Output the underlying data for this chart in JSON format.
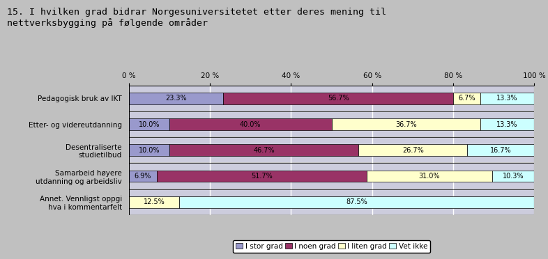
{
  "title": "15. I hvilken grad bidrar Norgesuniversitetet etter deres mening til\nnettverksbygging på følgende områder",
  "categories": [
    "Pedagogisk bruk av IKT",
    "Etter- og videreutdanning",
    "Desentraliserte\nstudietilbud",
    "Samarbeid høyere\nutdanning og arbeidsliv",
    "Annet. Vennligst oppgi\nhva i kommentarfelt"
  ],
  "series": {
    "I stor grad": [
      23.3,
      10.0,
      10.0,
      6.9,
      12.5
    ],
    "I noen grad": [
      56.7,
      40.0,
      46.7,
      51.7,
      87.5
    ],
    "I liten grad": [
      6.7,
      36.7,
      26.7,
      31.0,
      0.0
    ],
    "Vet ikke": [
      13.3,
      13.3,
      16.7,
      10.3,
      0.0
    ]
  },
  "colors": {
    "I stor grad": "#9999cc",
    "I noen grad": "#993366",
    "I liten grad": "#ffffcc",
    "Vet ikke": "#ccffff"
  },
  "annet_colors": {
    "I stor grad": "#ffffcc",
    "I noen grad": "#ccffff",
    "I liten grad": "#ffffcc",
    "Vet ikke": "#ccffff"
  },
  "bar_edge_color": "#000000",
  "background_color": "#c0c0c0",
  "plot_bg_color": "#c0c0c0",
  "row_bg_color": "#ccccdd",
  "xlim": [
    0,
    100
  ],
  "xticks": [
    0,
    20,
    40,
    60,
    80,
    100
  ],
  "xticklabels": [
    "0 %",
    "20 %",
    "40 %",
    "60 %",
    "80 %",
    "100 %"
  ],
  "label_fontsize": 7.5,
  "title_fontsize": 9.5,
  "legend_fontsize": 7.5
}
